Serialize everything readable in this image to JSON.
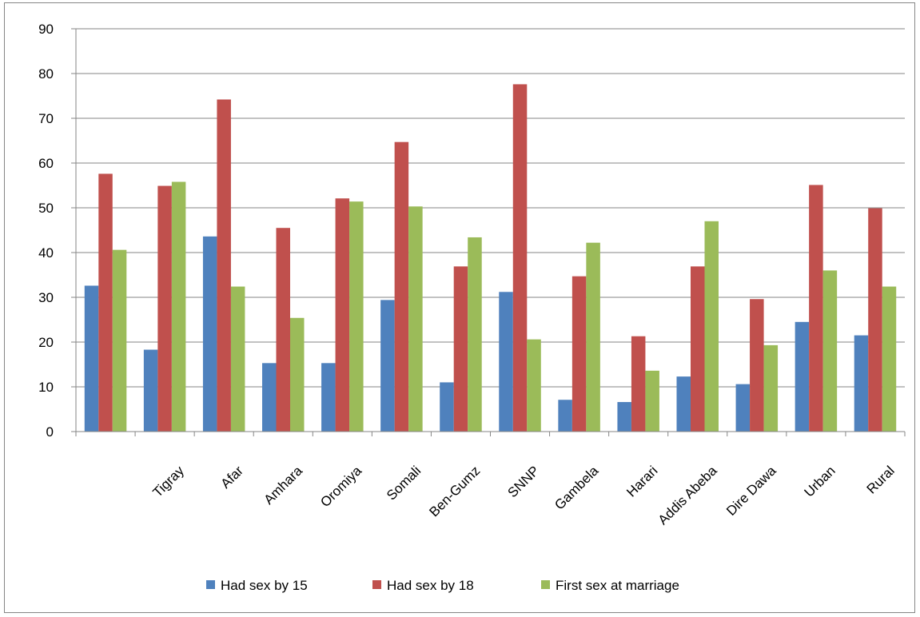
{
  "chart_data": {
    "type": "bar",
    "title": "",
    "xlabel": "",
    "ylabel": "",
    "ylim": [
      0,
      90
    ],
    "yticks": [
      0,
      10,
      20,
      30,
      40,
      50,
      60,
      70,
      80,
      90
    ],
    "grid": true,
    "legend_position": "bottom",
    "categories": [
      "",
      "Tigray",
      "Afar",
      "Amhara",
      "Oromiya",
      "Somali",
      "Ben-Gumz",
      "SNNP",
      "Gambela",
      "Harari",
      "Addis Abeba",
      "Dire Dawa",
      "Urban",
      "Rural"
    ],
    "series": [
      {
        "name": "Had sex by 15",
        "color": "#4f81bd",
        "values": [
          32.6,
          18.3,
          43.6,
          15.3,
          15.3,
          29.4,
          11.0,
          31.2,
          7.1,
          6.6,
          12.3,
          10.6,
          24.5,
          21.5
        ]
      },
      {
        "name": "Had sex by 18",
        "color": "#c0504d",
        "values": [
          57.6,
          54.9,
          74.2,
          45.5,
          52.1,
          64.7,
          36.9,
          77.6,
          34.7,
          21.3,
          36.9,
          29.6,
          55.1,
          49.9
        ]
      },
      {
        "name": "First sex at marriage",
        "color": "#9bbb59",
        "values": [
          40.6,
          55.8,
          32.4,
          25.4,
          51.4,
          50.3,
          43.4,
          20.6,
          42.2,
          13.6,
          47.0,
          19.3,
          36.0,
          32.4
        ]
      }
    ]
  }
}
